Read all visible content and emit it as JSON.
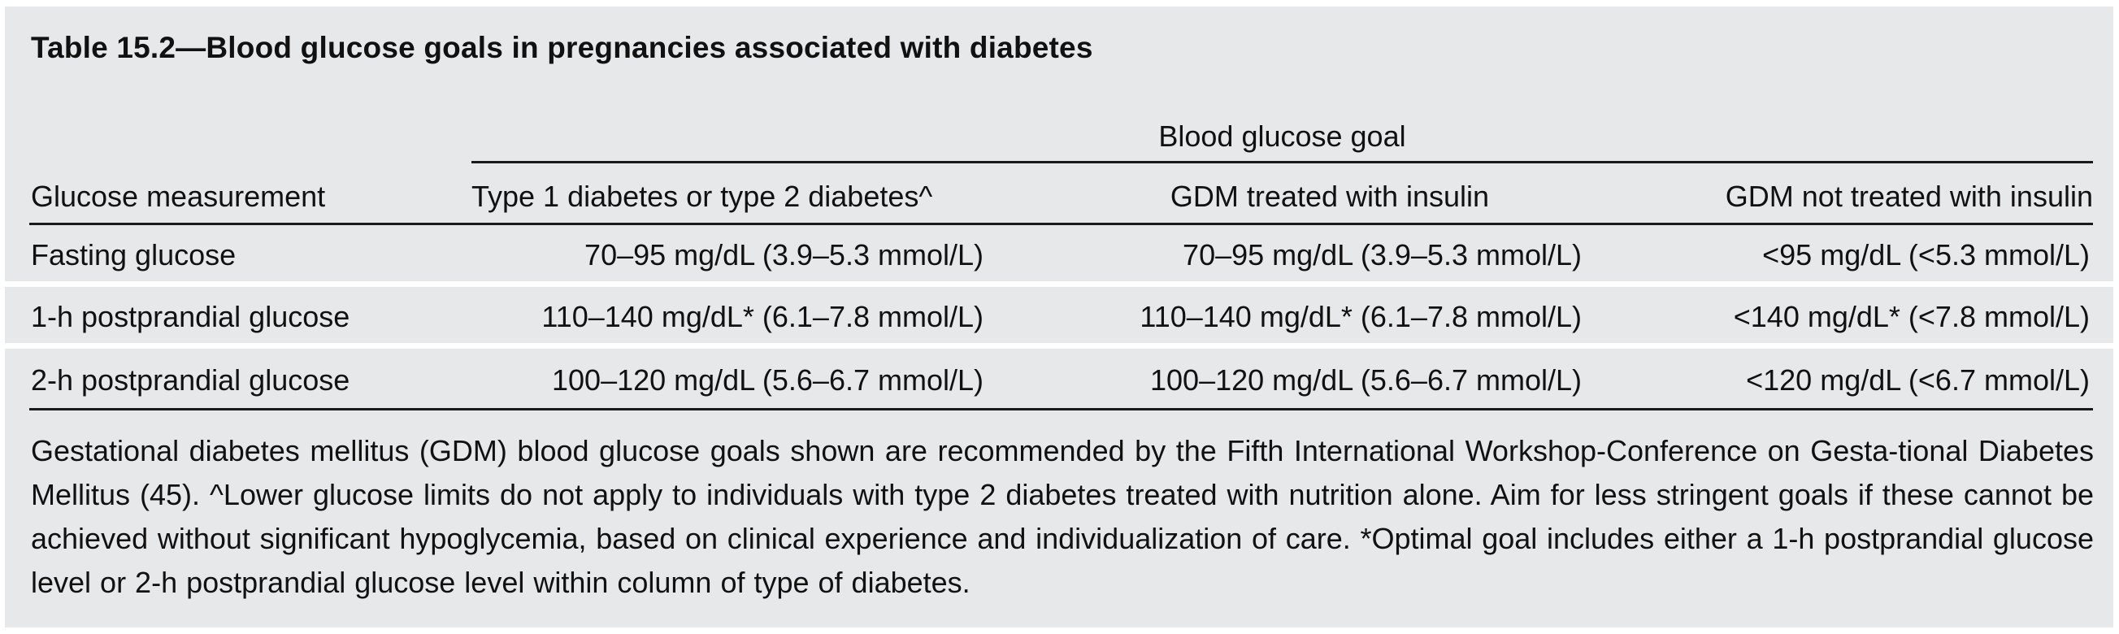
{
  "table": {
    "caption": "Table 15.2—Blood glucose goals in pregnancies associated with diabetes",
    "group_header": "Blood glucose goal",
    "columns": [
      "Glucose measurement",
      "Type 1 diabetes or type 2 diabetes^",
      "GDM treated with insulin",
      "GDM not treated with insulin"
    ],
    "rows": [
      {
        "measurement": "Fasting glucose",
        "type1_type2": "70–95 mg/dL (3.9–5.3 mmol/L)",
        "gdm_insulin": "70–95 mg/dL (3.9–5.3 mmol/L)",
        "gdm_no_insulin": "<95 mg/dL (<5.3 mmol/L)"
      },
      {
        "measurement": "1-h postprandial glucose",
        "type1_type2": "110–140 mg/dL* (6.1–7.8 mmol/L)",
        "gdm_insulin": "110–140 mg/dL* (6.1–7.8 mmol/L)",
        "gdm_no_insulin": "<140 mg/dL* (<7.8 mmol/L)"
      },
      {
        "measurement": "2-h postprandial glucose",
        "type1_type2": "100–120 mg/dL (5.6–6.7 mmol/L)",
        "gdm_insulin": "100–120 mg/dL (5.6–6.7 mmol/L)",
        "gdm_no_insulin": "<120 mg/dL (<6.7 mmol/L)"
      }
    ],
    "footnote": "Gestational diabetes mellitus (GDM) blood glucose goals shown are recommended by the Fifth International Workshop-Conference on Gesta-tional Diabetes Mellitus (45). ^Lower glucose limits do not apply to individuals with type 2 diabetes treated with nutrition alone. Aim for less stringent goals if these cannot be achieved without significant hypoglycemia, based on clinical experience and individualization of care. *Optimal goal includes either a 1-h postprandial glucose level or 2-h postprandial glucose level within column of type of diabetes.",
    "colors": {
      "background": "#e7e8e9",
      "row_separator": "#ffffff",
      "rule": "#1a1a1a",
      "text": "#111111"
    }
  }
}
